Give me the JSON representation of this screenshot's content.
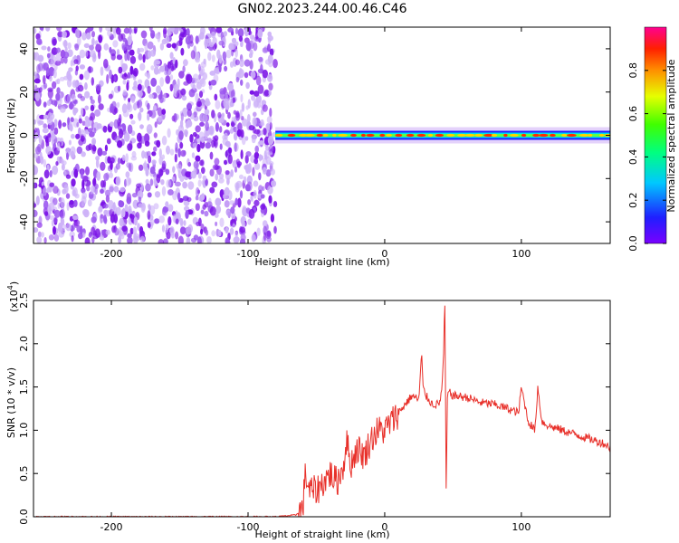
{
  "title": "GN02.2023.244.00.46.C46",
  "colors": {
    "snr_line": "#e8302a",
    "noise_purple": "#7b1fe0"
  },
  "chart_data": [
    {
      "type": "heatmap",
      "xlabel": "Height of straight line (km)",
      "ylabel": "Frequency (Hz)",
      "xlim": [
        -257,
        165
      ],
      "ylim": [
        -50,
        50
      ],
      "x_ticks": [
        -200,
        -100,
        0,
        100
      ],
      "y_ticks": [
        -40,
        -20,
        0,
        20,
        40
      ],
      "noise_region_x": [
        -257,
        -80
      ],
      "signal_band_center_hz": 0,
      "signal_band_x": [
        -80,
        165
      ],
      "colorbar": {
        "label": "Normalized spectral amplitude",
        "range": [
          0.0,
          1.0
        ],
        "ticks": [
          "0.0",
          "0.2",
          "0.4",
          "0.6",
          "0.8"
        ],
        "colormap": "rainbow"
      }
    },
    {
      "type": "line",
      "xlabel": "Height of straight line (km)",
      "ylabel": "SNR (10 * v/v)",
      "y_multiplier_label": "(x10",
      "y_multiplier_exp": "4",
      "y_multiplier_close": ")",
      "xlim": [
        -257,
        165
      ],
      "ylim": [
        0.0,
        2.5
      ],
      "x_ticks": [
        -200,
        -100,
        0,
        100
      ],
      "y_ticks": [
        "0.0",
        "0.5",
        "1.0",
        "1.5",
        "2.0",
        "2.5"
      ],
      "series": [
        {
          "x": [
            -257,
            -200,
            -150,
            -100,
            -80,
            -65,
            -60,
            -58,
            -55,
            -50,
            -45,
            -40,
            -35,
            -30,
            -28,
            -25,
            -20,
            -15,
            -10,
            -5,
            0,
            5,
            10,
            15,
            20,
            25,
            27,
            28,
            30,
            35,
            40,
            42,
            43,
            44,
            45,
            46,
            50,
            60,
            70,
            80,
            90,
            98,
            100,
            105,
            110,
            112,
            115,
            120,
            130,
            140,
            150,
            160,
            165
          ],
          "y": [
            0.0,
            0.0,
            0.0,
            0.0,
            0.0,
            0.02,
            0.1,
            0.5,
            0.3,
            0.3,
            0.4,
            0.5,
            0.4,
            0.6,
            0.9,
            0.6,
            0.8,
            0.7,
            0.9,
            1.0,
            1.0,
            1.1,
            1.2,
            1.3,
            1.4,
            1.35,
            1.9,
            1.5,
            1.4,
            1.3,
            1.3,
            1.5,
            1.85,
            2.5,
            0.25,
            1.45,
            1.4,
            1.38,
            1.32,
            1.3,
            1.25,
            1.2,
            1.5,
            1.1,
            1.0,
            1.5,
            1.1,
            1.05,
            1.0,
            0.95,
            0.9,
            0.85,
            0.8
          ]
        }
      ]
    }
  ]
}
